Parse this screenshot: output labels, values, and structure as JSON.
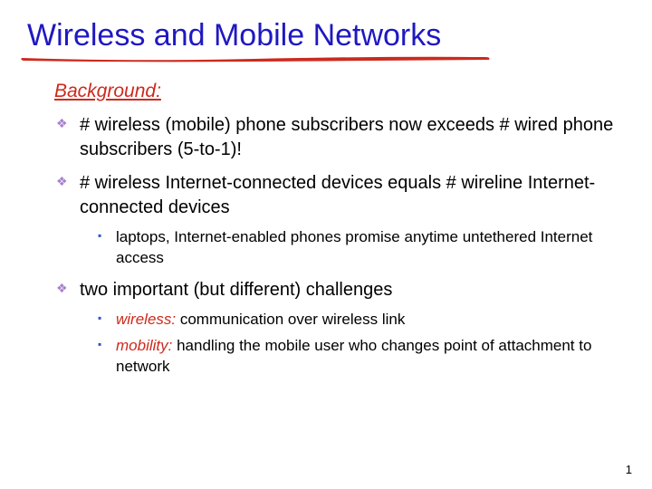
{
  "colors": {
    "title": "#1f18c2",
    "underline": "#cc2a1d",
    "subhead": "#cc2a1d",
    "diamond_bullet": "#a87fcf",
    "square_bullet": "#2b55c4",
    "body_text": "#000000",
    "keyword": "#cc2a1d"
  },
  "title": "Wireless and Mobile Networks",
  "subhead": "Background:",
  "bullets": {
    "b1": "# wireless (mobile) phone subscribers now exceeds # wired phone subscribers (5-to-1)!",
    "b2": "# wireless Internet-connected devices equals # wireline Internet-connected devices",
    "b2_sub1": "laptops, Internet-enabled phones promise anytime untethered Internet access",
    "b3": "two important (but different) challenges",
    "b3_sub1_kw": "wireless:",
    "b3_sub1_rest": " communication over wireless link",
    "b3_sub2_kw": "mobility:",
    "b3_sub2_rest": " handling the mobile user who changes point of attachment to network"
  },
  "page_number": "1",
  "typography": {
    "title_fontsize": 34,
    "subhead_fontsize": 21,
    "l1_fontsize": 20,
    "l2_fontsize": 17
  }
}
